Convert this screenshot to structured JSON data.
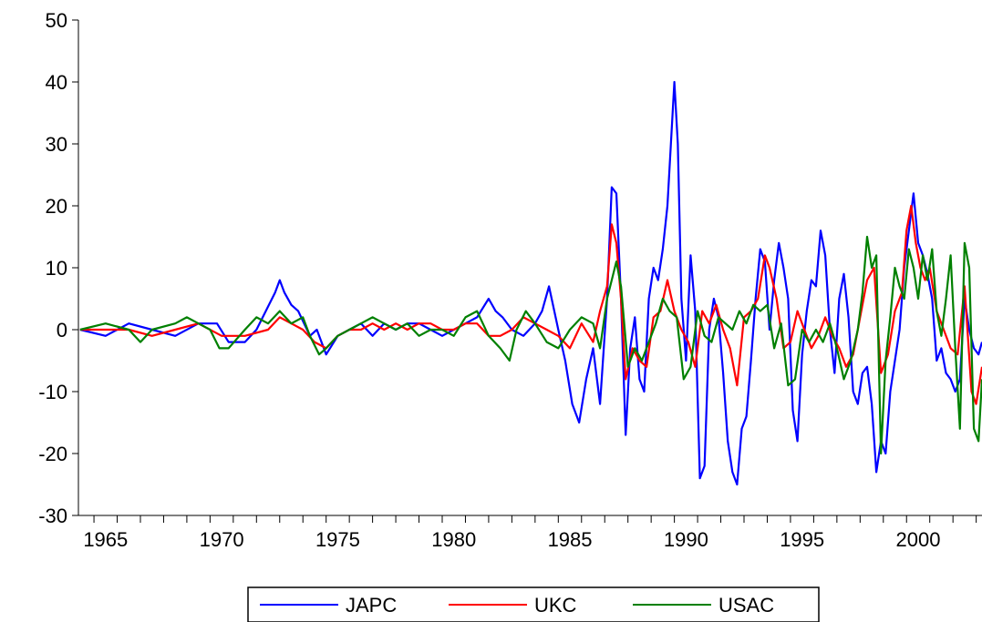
{
  "chart_data": {
    "type": "line",
    "title": "",
    "xlabel": "",
    "ylabel": "",
    "xlim": [
      1964.33,
      2003.25
    ],
    "ylim": [
      -30,
      50
    ],
    "x_ticks": [
      1965,
      1970,
      1975,
      1980,
      1985,
      1990,
      1995,
      2000
    ],
    "x_tick_labels": [
      "1965",
      "1970",
      "1975",
      "1980",
      "1985",
      "1990",
      "1995",
      "2000"
    ],
    "y_ticks": [
      -30,
      -20,
      -10,
      0,
      10,
      20,
      30,
      40,
      50
    ],
    "y_tick_labels": [
      "-30",
      "-20",
      "-10",
      "0",
      "10",
      "20",
      "30",
      "40",
      "50"
    ],
    "grid": false,
    "legend_position": "bottom",
    "series": [
      {
        "name": "JAPC",
        "color": "#0000ff",
        "x": [
          1964.4,
          1965.5,
          1966.5,
          1967.5,
          1968.5,
          1969.5,
          1970.3,
          1970.8,
          1971.5,
          1972.0,
          1972.4,
          1972.8,
          1973.0,
          1973.2,
          1973.5,
          1973.8,
          1974.3,
          1974.6,
          1975.0,
          1975.5,
          1976.0,
          1976.5,
          1977.0,
          1977.5,
          1978.0,
          1978.5,
          1979.0,
          1979.5,
          1980.0,
          1980.5,
          1981.0,
          1981.5,
          1982.0,
          1982.3,
          1982.6,
          1983.0,
          1983.5,
          1984.0,
          1984.3,
          1984.6,
          1985.0,
          1985.3,
          1985.6,
          1985.9,
          1986.2,
          1986.5,
          1986.8,
          1987.1,
          1987.3,
          1987.5,
          1987.7,
          1987.9,
          1988.1,
          1988.3,
          1988.5,
          1988.7,
          1988.9,
          1989.1,
          1989.3,
          1989.5,
          1989.7,
          1989.85,
          1990.0,
          1990.15,
          1990.3,
          1990.5,
          1990.7,
          1990.9,
          1991.1,
          1991.3,
          1991.5,
          1991.7,
          1991.9,
          1992.1,
          1992.3,
          1992.5,
          1992.7,
          1992.9,
          1993.1,
          1993.3,
          1993.5,
          1993.7,
          1993.9,
          1994.1,
          1994.3,
          1994.5,
          1994.7,
          1994.9,
          1995.1,
          1995.3,
          1995.5,
          1995.7,
          1995.9,
          1996.1,
          1996.3,
          1996.5,
          1996.7,
          1996.9,
          1997.1,
          1997.3,
          1997.5,
          1997.7,
          1997.9,
          1998.1,
          1998.3,
          1998.5,
          1998.7,
          1998.9,
          1999.1,
          1999.3,
          1999.5,
          1999.7,
          1999.9,
          2000.1,
          2000.3,
          2000.5,
          2000.7,
          2000.9,
          2001.1,
          2001.3,
          2001.5,
          2001.7,
          2001.9,
          2002.1,
          2002.3,
          2002.5,
          2002.7,
          2002.9,
          2003.1,
          2003.25
        ],
        "y": [
          0,
          -1,
          1,
          0,
          -1,
          1,
          1,
          -2,
          -2,
          0,
          3,
          6,
          8,
          6,
          4,
          3,
          -1,
          0,
          -4,
          -1,
          0,
          1,
          -1,
          1,
          0,
          1,
          1,
          0,
          -1,
          0,
          1,
          2,
          5,
          3,
          2,
          0,
          -1,
          1,
          3,
          7,
          0,
          -5,
          -12,
          -15,
          -8,
          -3,
          -12,
          5,
          23,
          22,
          5,
          -17,
          -3,
          2,
          -8,
          -10,
          5,
          10,
          8,
          13,
          20,
          30,
          40,
          30,
          5,
          -5,
          12,
          3,
          -24,
          -22,
          0,
          5,
          2,
          -7,
          -18,
          -23,
          -25,
          -16,
          -14,
          -5,
          5,
          13,
          11,
          0,
          8,
          14,
          10,
          5,
          -13,
          -18,
          -4,
          3,
          8,
          7,
          16,
          12,
          0,
          -7,
          5,
          9,
          2,
          -10,
          -12,
          -7,
          -6,
          -12,
          -23,
          -18,
          -20,
          -10,
          -5,
          0,
          10,
          16,
          22,
          14,
          12,
          9,
          5,
          -5,
          -3,
          -7,
          -8,
          -10,
          -8,
          5,
          0,
          -3,
          -4,
          -2
        ]
      },
      {
        "name": "UKC",
        "color": "#ff0000",
        "x": [
          1964.4,
          1965.5,
          1966.5,
          1967.5,
          1968.5,
          1969.5,
          1970.5,
          1971.5,
          1972.5,
          1973.0,
          1973.5,
          1974.0,
          1974.5,
          1975.0,
          1975.5,
          1976.0,
          1976.5,
          1977.0,
          1977.5,
          1978.0,
          1978.5,
          1979.0,
          1979.5,
          1980.0,
          1980.5,
          1981.0,
          1981.5,
          1982.0,
          1982.5,
          1983.0,
          1983.5,
          1984.0,
          1984.5,
          1985.0,
          1985.5,
          1986.0,
          1986.5,
          1986.8,
          1987.1,
          1987.3,
          1987.5,
          1987.7,
          1987.9,
          1988.2,
          1988.5,
          1988.8,
          1989.1,
          1989.4,
          1989.7,
          1990.0,
          1990.3,
          1990.6,
          1990.9,
          1991.2,
          1991.5,
          1991.8,
          1992.1,
          1992.4,
          1992.7,
          1993.0,
          1993.3,
          1993.6,
          1993.9,
          1994.1,
          1994.4,
          1994.7,
          1995.0,
          1995.3,
          1995.6,
          1995.9,
          1996.2,
          1996.5,
          1996.8,
          1997.1,
          1997.4,
          1997.7,
          1998.0,
          1998.3,
          1998.6,
          1998.9,
          1999.2,
          1999.5,
          1999.8,
          2000.0,
          2000.2,
          2000.4,
          2000.6,
          2000.8,
          2001.0,
          2001.3,
          2001.6,
          2001.9,
          2002.2,
          2002.5,
          2002.8,
          2003.0,
          2003.25
        ],
        "y": [
          0,
          0,
          0,
          -1,
          0,
          1,
          -1,
          -1,
          0,
          2,
          1,
          0,
          -2,
          -3,
          -1,
          0,
          0,
          1,
          0,
          1,
          0,
          1,
          1,
          0,
          0,
          1,
          1,
          -1,
          -1,
          0,
          2,
          1,
          0,
          -1,
          -3,
          1,
          -2,
          3,
          7,
          17,
          14,
          5,
          -8,
          -3,
          -5,
          -6,
          2,
          3,
          8,
          3,
          0,
          -2,
          -6,
          3,
          1,
          4,
          0,
          -3,
          -9,
          2,
          3,
          5,
          12,
          10,
          5,
          -3,
          -2,
          3,
          0,
          -3,
          -1,
          2,
          -1,
          -3,
          -6,
          -4,
          2,
          8,
          10,
          -7,
          -4,
          3,
          6,
          16,
          20,
          14,
          10,
          8,
          10,
          3,
          0,
          -3,
          -4,
          7,
          -10,
          -12,
          -6
        ]
      },
      {
        "name": "USAC",
        "color": "#008000",
        "x": [
          1964.4,
          1965.5,
          1966.5,
          1967.0,
          1967.5,
          1968.5,
          1969.0,
          1969.5,
          1970.0,
          1970.4,
          1970.8,
          1971.5,
          1972.0,
          1972.5,
          1973.0,
          1973.5,
          1974.0,
          1974.3,
          1974.7,
          1975.0,
          1975.5,
          1976.0,
          1976.5,
          1977.0,
          1977.5,
          1978.0,
          1978.5,
          1979.0,
          1979.5,
          1980.0,
          1980.5,
          1981.0,
          1981.5,
          1982.0,
          1982.5,
          1982.9,
          1983.2,
          1983.6,
          1984.0,
          1984.5,
          1985.0,
          1985.5,
          1986.0,
          1986.5,
          1986.8,
          1987.1,
          1987.3,
          1987.5,
          1987.7,
          1988.0,
          1988.3,
          1988.6,
          1988.9,
          1989.2,
          1989.5,
          1989.8,
          1990.1,
          1990.4,
          1990.7,
          1991.0,
          1991.3,
          1991.6,
          1991.9,
          1992.2,
          1992.5,
          1992.8,
          1993.1,
          1993.4,
          1993.7,
          1994.0,
          1994.3,
          1994.6,
          1994.9,
          1995.2,
          1995.5,
          1995.8,
          1996.1,
          1996.4,
          1996.7,
          1997.0,
          1997.3,
          1997.6,
          1997.9,
          1998.1,
          1998.3,
          1998.5,
          1998.7,
          1998.9,
          1999.1,
          1999.3,
          1999.5,
          1999.7,
          1999.9,
          2000.1,
          2000.3,
          2000.5,
          2000.7,
          2000.9,
          2001.1,
          2001.3,
          2001.5,
          2001.7,
          2001.9,
          2002.1,
          2002.3,
          2002.5,
          2002.7,
          2002.9,
          2003.1,
          2003.25
        ],
        "y": [
          0,
          1,
          0,
          -2,
          0,
          1,
          2,
          1,
          0,
          -3,
          -3,
          0,
          2,
          1,
          3,
          1,
          2,
          -1,
          -4,
          -3,
          -1,
          0,
          1,
          2,
          1,
          0,
          1,
          -1,
          0,
          0,
          -1,
          2,
          3,
          -1,
          -3,
          -5,
          0,
          3,
          1,
          -2,
          -3,
          0,
          2,
          1,
          -3,
          5,
          8,
          11,
          7,
          -6,
          -3,
          -5,
          -2,
          1,
          5,
          3,
          2,
          -8,
          -6,
          3,
          -1,
          -2,
          2,
          1,
          0,
          3,
          1,
          4,
          3,
          4,
          -3,
          1,
          -9,
          -8,
          0,
          -2,
          0,
          -2,
          1,
          -3,
          -8,
          -5,
          0,
          6,
          15,
          10,
          12,
          -20,
          -5,
          2,
          10,
          7,
          5,
          13,
          10,
          5,
          12,
          8,
          13,
          3,
          -1,
          5,
          12,
          -3,
          -16,
          14,
          10,
          -16,
          -18,
          -8
        ]
      }
    ]
  }
}
